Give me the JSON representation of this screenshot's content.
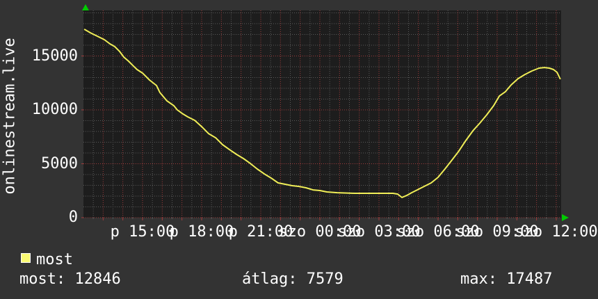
{
  "title_vertical": "onlinestream.live",
  "legend": {
    "label": "most"
  },
  "stats": {
    "most": "most: 12846",
    "avg": "átlag: 7579",
    "max": "max: 17487"
  },
  "colors": {
    "outer_bg": "#333333",
    "plot_bg": "#1d1d1d",
    "grid_minor": "#5a5a5a",
    "grid_major": "#a03c3c",
    "line": "#f0ee57",
    "legend_fill": "#f9f973",
    "legend_border": "#ffffff",
    "text": "#ffffff",
    "arrow": "#00cc00"
  },
  "chart_data": {
    "type": "line",
    "title": "onlinestream.live",
    "ylabel": "onlinestream.live",
    "grid": "dotted, minor gray / major red",
    "legend_position": "bottom-left",
    "y_axis": {
      "ticks": [
        0,
        5000,
        10000,
        15000
      ],
      "range": [
        0,
        19226
      ],
      "minor_step": 1000,
      "major_step": 5000
    },
    "x_axis": {
      "unit": "hours since Friday 12:00",
      "range_hours": [
        0,
        24.25
      ],
      "minor_step_hours": 0.5,
      "major_step_hours": 1,
      "ticks": [
        {
          "t": 3,
          "label": "p 15:00"
        },
        {
          "t": 6,
          "label": "p 18:00"
        },
        {
          "t": 9,
          "label": "p 21:00"
        },
        {
          "t": 12,
          "label": "szo 00:00"
        },
        {
          "t": 15,
          "label": "szo 03:00"
        },
        {
          "t": 18,
          "label": "szo 06:00"
        },
        {
          "t": 21,
          "label": "szo 09:00"
        },
        {
          "t": 24,
          "label": "szo 12:00"
        }
      ]
    },
    "series": [
      {
        "name": "most",
        "current": 12846,
        "average": 7579,
        "max": 17487,
        "points": [
          [
            0.04,
            17487
          ],
          [
            0.35,
            17158
          ],
          [
            0.71,
            16835
          ],
          [
            1.06,
            16513
          ],
          [
            1.34,
            16126
          ],
          [
            1.59,
            15868
          ],
          [
            1.84,
            15416
          ],
          [
            2.05,
            14900
          ],
          [
            2.29,
            14513
          ],
          [
            2.54,
            14061
          ],
          [
            2.72,
            13739
          ],
          [
            3.0,
            13416
          ],
          [
            3.35,
            12771
          ],
          [
            3.71,
            12255
          ],
          [
            3.88,
            11610
          ],
          [
            4.24,
            10835
          ],
          [
            4.59,
            10384
          ],
          [
            4.76,
            9997
          ],
          [
            5.01,
            9674
          ],
          [
            5.29,
            9352
          ],
          [
            5.65,
            9029
          ],
          [
            6.0,
            8448
          ],
          [
            6.35,
            7803
          ],
          [
            6.71,
            7416
          ],
          [
            7.06,
            6771
          ],
          [
            7.41,
            6319
          ],
          [
            7.77,
            5868
          ],
          [
            8.12,
            5481
          ],
          [
            8.47,
            5029
          ],
          [
            8.82,
            4513
          ],
          [
            9.18,
            4061
          ],
          [
            9.53,
            3674
          ],
          [
            9.88,
            3223
          ],
          [
            10.24,
            3094
          ],
          [
            10.59,
            2965
          ],
          [
            10.94,
            2900
          ],
          [
            11.29,
            2771
          ],
          [
            11.65,
            2577
          ],
          [
            12.0,
            2513
          ],
          [
            12.35,
            2384
          ],
          [
            12.88,
            2319
          ],
          [
            13.77,
            2255
          ],
          [
            14.82,
            2255
          ],
          [
            15.71,
            2255
          ],
          [
            15.95,
            2190
          ],
          [
            16.17,
            1868
          ],
          [
            16.41,
            2061
          ],
          [
            16.66,
            2319
          ],
          [
            16.94,
            2577
          ],
          [
            17.29,
            2900
          ],
          [
            17.65,
            3223
          ],
          [
            18.0,
            3739
          ],
          [
            18.35,
            4513
          ],
          [
            18.71,
            5352
          ],
          [
            19.06,
            6190
          ],
          [
            19.41,
            7158
          ],
          [
            19.77,
            8061
          ],
          [
            20.12,
            8771
          ],
          [
            20.47,
            9545
          ],
          [
            20.82,
            10384
          ],
          [
            21.11,
            11287
          ],
          [
            21.41,
            11674
          ],
          [
            21.71,
            12319
          ],
          [
            22.06,
            12900
          ],
          [
            22.41,
            13287
          ],
          [
            22.77,
            13610
          ],
          [
            23.12,
            13868
          ],
          [
            23.4,
            13932
          ],
          [
            23.65,
            13868
          ],
          [
            23.86,
            13739
          ],
          [
            24.04,
            13481
          ],
          [
            24.14,
            13094
          ],
          [
            24.21,
            12846
          ]
        ]
      }
    ]
  }
}
